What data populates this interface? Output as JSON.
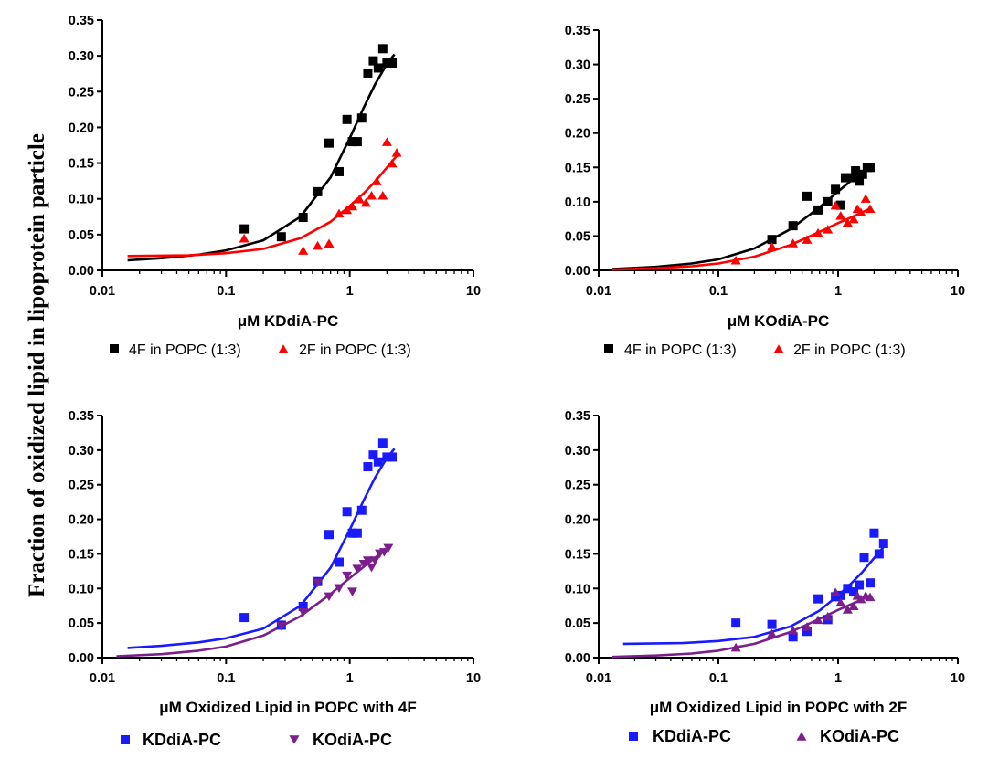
{
  "figure": {
    "ylabel": "Fraction of oxidized lipid in lipoprotein particle"
  },
  "chart_data": [
    {
      "type": "scatter",
      "x_scale": "log",
      "xlim": [
        0.01,
        10
      ],
      "ylim": [
        0,
        0.35
      ],
      "x_ticks": [
        "0.01",
        "0.1",
        "1",
        "10"
      ],
      "y_ticks": [
        "0.00",
        "0.05",
        "0.10",
        "0.15",
        "0.20",
        "0.25",
        "0.30",
        "0.35"
      ],
      "xlabel_prefix": "μM",
      "xlabel": "KDdiA-PC",
      "legend_style": "plain",
      "series": [
        {
          "name": "4F in POPC (1:3)",
          "color": "#000000",
          "marker": "square",
          "x": [
            0.14,
            0.28,
            0.42,
            0.55,
            0.68,
            0.82,
            0.95,
            1.05,
            1.15,
            1.25,
            1.4,
            1.55,
            1.7,
            1.85,
            2.0,
            2.2
          ],
          "y": [
            0.058,
            0.047,
            0.074,
            0.11,
            0.178,
            0.138,
            0.211,
            0.18,
            0.18,
            0.213,
            0.276,
            0.293,
            0.283,
            0.31,
            0.29,
            0.29
          ],
          "fit_x": [
            0.016,
            0.03,
            0.06,
            0.1,
            0.2,
            0.4,
            0.7,
            1.0,
            1.3,
            1.6,
            2.0,
            2.3
          ],
          "fit_y": [
            0.014,
            0.017,
            0.022,
            0.028,
            0.042,
            0.075,
            0.13,
            0.185,
            0.228,
            0.26,
            0.289,
            0.302
          ]
        },
        {
          "name": "2F in POPC (1:3)",
          "color": "#ff0000",
          "marker": "triangle",
          "x": [
            0.14,
            0.42,
            0.55,
            0.68,
            0.82,
            0.95,
            1.05,
            1.2,
            1.35,
            1.5,
            1.65,
            1.85,
            2.0,
            2.2,
            2.4
          ],
          "y": [
            0.045,
            0.028,
            0.035,
            0.038,
            0.08,
            0.085,
            0.09,
            0.1,
            0.095,
            0.105,
            0.125,
            0.105,
            0.18,
            0.15,
            0.165
          ],
          "fit_x": [
            0.016,
            0.05,
            0.1,
            0.2,
            0.4,
            0.7,
            1.0,
            1.3,
            1.6,
            2.0,
            2.4
          ],
          "fit_y": [
            0.02,
            0.021,
            0.024,
            0.03,
            0.045,
            0.068,
            0.09,
            0.108,
            0.124,
            0.144,
            0.16
          ]
        }
      ]
    },
    {
      "type": "scatter",
      "x_scale": "log",
      "xlim": [
        0.01,
        10
      ],
      "ylim": [
        0,
        0.35
      ],
      "x_ticks": [
        "0.01",
        "0.1",
        "1",
        "10"
      ],
      "y_ticks": [
        "0.00",
        "0.05",
        "0.10",
        "0.15",
        "0.20",
        "0.25",
        "0.30",
        "0.35"
      ],
      "xlabel_prefix": "μM",
      "xlabel": "KOdiA-PC",
      "legend_style": "plain",
      "series": [
        {
          "name": "4F in POPC (1:3)",
          "color": "#000000",
          "marker": "square",
          "x": [
            0.28,
            0.42,
            0.55,
            0.68,
            0.82,
            0.95,
            1.05,
            1.15,
            1.3,
            1.4,
            1.5,
            1.6,
            1.75,
            1.85
          ],
          "y": [
            0.045,
            0.065,
            0.108,
            0.088,
            0.1,
            0.118,
            0.095,
            0.135,
            0.135,
            0.145,
            0.13,
            0.14,
            0.15,
            0.15
          ],
          "fit_x": [
            0.013,
            0.03,
            0.06,
            0.1,
            0.2,
            0.4,
            0.7,
            1.0,
            1.4,
            1.85
          ],
          "fit_y": [
            0.002,
            0.005,
            0.01,
            0.016,
            0.032,
            0.06,
            0.092,
            0.115,
            0.136,
            0.15
          ]
        },
        {
          "name": "2F in POPC (1:3)",
          "color": "#ff0000",
          "marker": "triangle",
          "x": [
            0.14,
            0.28,
            0.42,
            0.55,
            0.68,
            0.82,
            0.95,
            1.05,
            1.2,
            1.35,
            1.45,
            1.55,
            1.7,
            1.85
          ],
          "y": [
            0.015,
            0.035,
            0.04,
            0.045,
            0.055,
            0.06,
            0.095,
            0.08,
            0.07,
            0.075,
            0.09,
            0.085,
            0.105,
            0.09
          ],
          "fit_x": [
            0.013,
            0.03,
            0.06,
            0.1,
            0.2,
            0.4,
            0.7,
            1.0,
            1.4,
            1.85
          ],
          "fit_y": [
            0.001,
            0.003,
            0.006,
            0.01,
            0.02,
            0.037,
            0.056,
            0.069,
            0.08,
            0.09
          ]
        }
      ]
    },
    {
      "type": "scatter",
      "x_scale": "log",
      "xlim": [
        0.01,
        10
      ],
      "ylim": [
        0,
        0.35
      ],
      "x_ticks": [
        "0.01",
        "0.1",
        "1",
        "10"
      ],
      "y_ticks": [
        "0.00",
        "0.05",
        "0.10",
        "0.15",
        "0.20",
        "0.25",
        "0.30",
        "0.35"
      ],
      "xlabel_prefix": "μM",
      "xlabel": "Oxidized Lipid in POPC with 4F",
      "legend_style": "bold",
      "series": [
        {
          "name": "KDdiA-PC",
          "color": "#1a1aff",
          "marker": "square",
          "x": [
            0.14,
            0.28,
            0.42,
            0.55,
            0.68,
            0.82,
            0.95,
            1.05,
            1.15,
            1.25,
            1.4,
            1.55,
            1.7,
            1.85,
            2.0,
            2.2
          ],
          "y": [
            0.058,
            0.047,
            0.074,
            0.11,
            0.178,
            0.138,
            0.211,
            0.18,
            0.18,
            0.213,
            0.276,
            0.293,
            0.283,
            0.31,
            0.29,
            0.29
          ],
          "fit_x": [
            0.016,
            0.03,
            0.06,
            0.1,
            0.2,
            0.4,
            0.7,
            1.0,
            1.3,
            1.6,
            2.0,
            2.3
          ],
          "fit_y": [
            0.014,
            0.017,
            0.022,
            0.028,
            0.042,
            0.075,
            0.13,
            0.185,
            0.228,
            0.26,
            0.289,
            0.302
          ]
        },
        {
          "name": "KOdiA-PC",
          "color": "#7b1f8c",
          "marker": "triangle-down",
          "x": [
            0.28,
            0.42,
            0.55,
            0.68,
            0.82,
            0.95,
            1.05,
            1.15,
            1.3,
            1.4,
            1.5,
            1.6,
            1.75,
            1.9,
            2.05
          ],
          "y": [
            0.045,
            0.065,
            0.108,
            0.088,
            0.1,
            0.118,
            0.095,
            0.128,
            0.135,
            0.14,
            0.13,
            0.14,
            0.15,
            0.152,
            0.158
          ],
          "fit_x": [
            0.013,
            0.03,
            0.06,
            0.1,
            0.2,
            0.4,
            0.7,
            1.0,
            1.4,
            2.0
          ],
          "fit_y": [
            0.002,
            0.005,
            0.01,
            0.016,
            0.032,
            0.06,
            0.092,
            0.115,
            0.136,
            0.158
          ]
        }
      ]
    },
    {
      "type": "scatter",
      "x_scale": "log",
      "xlim": [
        0.01,
        10
      ],
      "ylim": [
        0,
        0.35
      ],
      "x_ticks": [
        "0.01",
        "0.1",
        "1",
        "10"
      ],
      "y_ticks": [
        "0.00",
        "0.05",
        "0.10",
        "0.15",
        "0.20",
        "0.25",
        "0.30",
        "0.35"
      ],
      "xlabel_prefix": "μM",
      "xlabel": "Oxidized Lipid in POPC with 2F",
      "legend_style": "bold",
      "series": [
        {
          "name": "KDdiA-PC",
          "color": "#1a1aff",
          "marker": "square",
          "x": [
            0.14,
            0.28,
            0.42,
            0.55,
            0.68,
            0.82,
            0.95,
            1.05,
            1.2,
            1.35,
            1.5,
            1.65,
            1.85,
            2.0,
            2.2,
            2.4
          ],
          "y": [
            0.05,
            0.048,
            0.03,
            0.038,
            0.085,
            0.055,
            0.088,
            0.09,
            0.1,
            0.095,
            0.105,
            0.145,
            0.108,
            0.18,
            0.15,
            0.165
          ],
          "fit_x": [
            0.016,
            0.05,
            0.1,
            0.2,
            0.4,
            0.7,
            1.0,
            1.3,
            1.6,
            2.0,
            2.4
          ],
          "fit_y": [
            0.02,
            0.021,
            0.024,
            0.03,
            0.045,
            0.068,
            0.09,
            0.108,
            0.124,
            0.144,
            0.16
          ]
        },
        {
          "name": "KOdiA-PC",
          "color": "#7b1f8c",
          "marker": "triangle",
          "x": [
            0.14,
            0.28,
            0.42,
            0.55,
            0.68,
            0.82,
            0.95,
            1.05,
            1.2,
            1.35,
            1.45,
            1.55,
            1.7,
            1.85
          ],
          "y": [
            0.015,
            0.035,
            0.04,
            0.045,
            0.055,
            0.06,
            0.095,
            0.08,
            0.07,
            0.075,
            0.09,
            0.085,
            0.09,
            0.088
          ],
          "fit_x": [
            0.013,
            0.03,
            0.06,
            0.1,
            0.2,
            0.4,
            0.7,
            1.0,
            1.4,
            1.85
          ],
          "fit_y": [
            0.001,
            0.003,
            0.006,
            0.01,
            0.02,
            0.037,
            0.056,
            0.069,
            0.08,
            0.09
          ]
        }
      ]
    }
  ]
}
